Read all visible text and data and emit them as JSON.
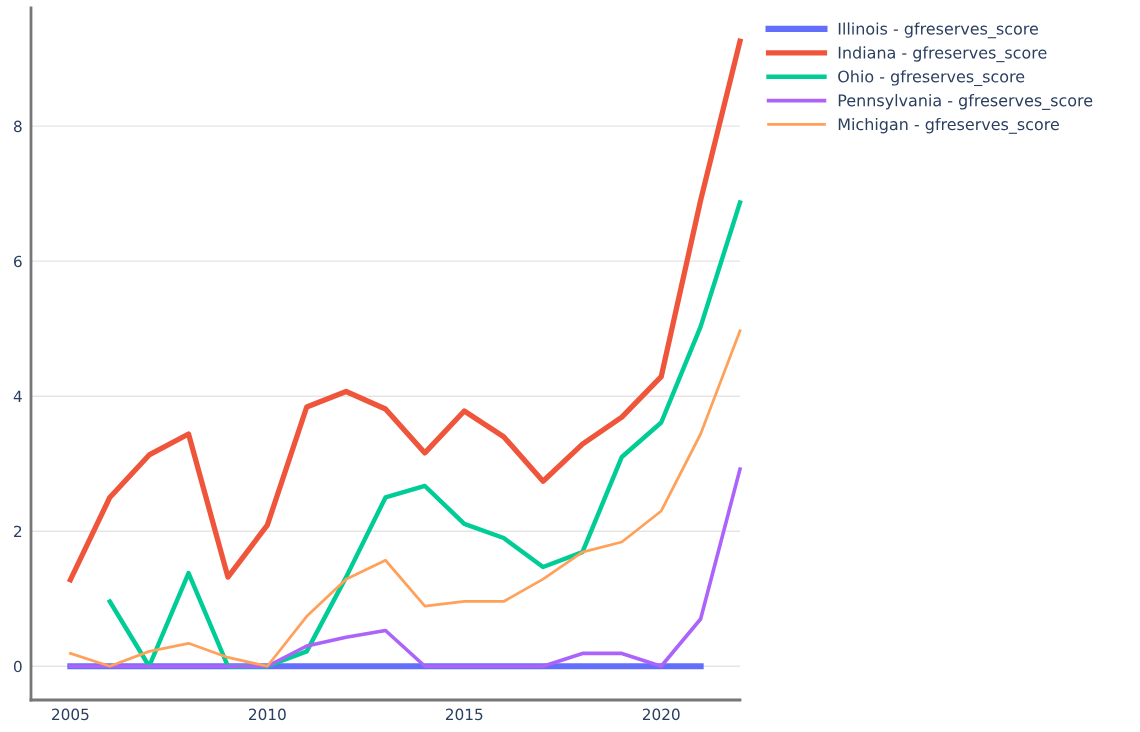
{
  "chart_data": {
    "type": "line",
    "x": [
      2005,
      2006,
      2007,
      2008,
      2009,
      2010,
      2011,
      2012,
      2013,
      2014,
      2015,
      2016,
      2017,
      2018,
      2019,
      2020,
      2021,
      2022
    ],
    "series": [
      {
        "name": "Illinois - gfreserves_score",
        "color": "#636efa",
        "values": [
          0,
          0,
          0,
          0,
          0,
          0,
          0,
          0,
          0,
          0,
          0,
          0,
          0,
          0,
          0,
          0,
          0,
          null
        ]
      },
      {
        "name": "Indiana - gfreserves_score",
        "color": "#ef553b",
        "values": [
          1.28,
          2.5,
          3.13,
          3.44,
          1.32,
          2.09,
          3.84,
          4.07,
          3.81,
          3.16,
          3.78,
          3.4,
          2.74,
          3.29,
          3.69,
          4.29,
          6.9,
          9.26
        ]
      },
      {
        "name": "Ohio - gfreserves_score",
        "color": "#00cc96",
        "values": [
          null,
          0.96,
          0,
          1.38,
          0,
          0,
          0.22,
          1.32,
          2.5,
          2.67,
          2.11,
          1.9,
          1.47,
          1.69,
          3.1,
          3.61,
          5.03,
          6.87
        ]
      },
      {
        "name": "Pennsylvania - gfreserves_score",
        "color": "#ab63fa",
        "values": [
          0,
          0,
          0,
          0,
          0,
          0,
          0.3,
          0.43,
          0.53,
          0,
          0,
          0,
          0,
          0.19,
          0.19,
          0,
          0.7,
          2.92
        ]
      },
      {
        "name": "Michigan - gfreserves_score",
        "color": "#ffa15a",
        "values": [
          0.19,
          0,
          0.22,
          0.34,
          0.13,
          0,
          0.74,
          1.29,
          1.57,
          0.89,
          0.96,
          0.96,
          1.29,
          1.69,
          1.84,
          2.3,
          3.44,
          4.97
        ]
      }
    ],
    "xlim": [
      2004,
      2022
    ],
    "xticks": [
      2005,
      2010,
      2015,
      2020
    ],
    "ylim": [
      -0.5,
      9.75
    ],
    "yticks": [
      0,
      2,
      4,
      6,
      8
    ],
    "grid": "y",
    "legend": "top right",
    "marker": "none",
    "line_style": "solid"
  }
}
